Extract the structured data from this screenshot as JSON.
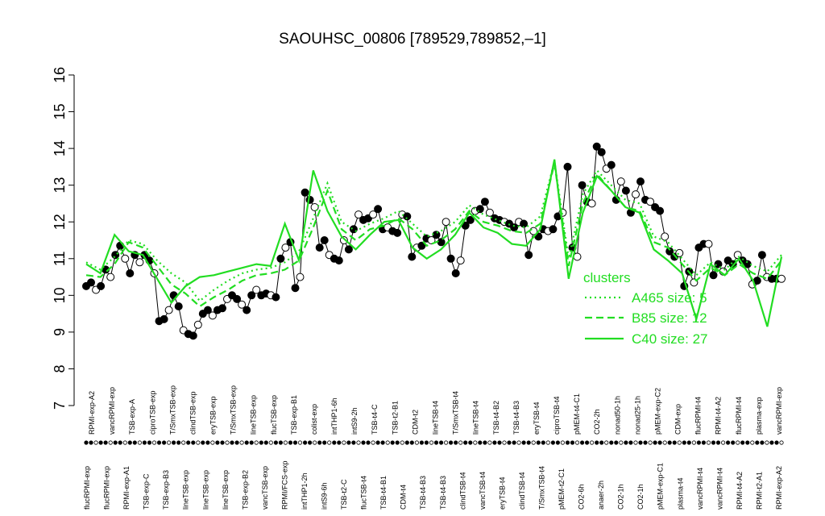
{
  "chart_data": {
    "type": "line",
    "title": "SAOUHSC_00806 [789529,789852,–1]",
    "xlabel": "",
    "ylabel": "",
    "ylim": [
      7,
      16
    ],
    "y_ticks": [
      7,
      8,
      9,
      10,
      11,
      12,
      13,
      14,
      15,
      16
    ],
    "grid": false,
    "legend_position": "right",
    "colors": {
      "data": "#000000",
      "clusters": "#22dd22"
    },
    "legend": {
      "title": "clusters",
      "entries": [
        {
          "label": "A465 size: 5",
          "style": "dotted"
        },
        {
          "label": "B85 size: 12",
          "style": "dashed"
        },
        {
          "label": "C40 size: 27",
          "style": "solid"
        }
      ]
    },
    "top_labels": [
      "RPMI-exp-A2",
      "vancRPMI-exp",
      "TSB-exp-A",
      "ciproTSB-exp",
      "T/SmxTSB-exp",
      "clindTSB-exp",
      "eryTSB-exp",
      "T/SmxTSB-exp",
      "lineTSB-exp",
      "flucTSB-exp",
      "TSB-exp-B1",
      "colist-exp",
      "intTHP1-6h",
      "intS9-2h",
      "TSB-t4-C",
      "TSB-t2-B1",
      "CDM-t2",
      "lineTSB-t4",
      "T/SmxTSB-t4",
      "lineTSB-t4",
      "TSB-t4-B2",
      "TSB-t4-B3",
      "eryTSB-t4",
      "ciproTSB-t4",
      "pMEM-t4-C1",
      "CO2-2h",
      "nonad50-1h",
      "nonad25-1h",
      "pMEM-exp-C2",
      "CDM-exp",
      "flucRPMI-t4",
      "RPMI-t4-A2",
      "flucRPMI-t4",
      "plasma-exp",
      "vancRPMI-exp"
    ],
    "bottom_labels": [
      "flucRPMI-exp",
      "flucRPMI-exp",
      "RPMI-exp-A1",
      "TSB-exp-C",
      "TSB-exp-B3",
      "lineTSB-exp",
      "lineTSB-exp",
      "lineTSB-exp",
      "TSB-exp-B2",
      "vancTSB-exp",
      "RPMI/FCS-exp",
      "intTHP1-2h",
      "intS9-6h",
      "TSB-t2-C",
      "flucTSB-t4",
      "TSB-t4-B1",
      "CDM-t4",
      "TSB-t4-B3",
      "TSB-t4-B3",
      "clindTSB-t4",
      "vancTSB-t4",
      "eryTSB-t4",
      "clindTSB-t4",
      "T/SmxTSB-t4",
      "pMEM-t2-C1",
      "CO2-6h",
      "anaer-2h",
      "CO2-1h",
      "CO2-1h",
      "pMEM-exp-C1",
      "plasma-t4",
      "vancRPMI-t4",
      "vancRPMI-t4",
      "RPMI-t4-A2",
      "RPMI-t2-A1",
      "RPMI-exp-A2"
    ],
    "series": [
      {
        "values": [
          10.25,
          10.35,
          10.15,
          10.25,
          10.7,
          10.5,
          11.1,
          11.35,
          11.0,
          10.6,
          11.1,
          10.9,
          11.1,
          10.95,
          10.6,
          9.3,
          9.35,
          9.6,
          10.0,
          9.7,
          9.05,
          8.95,
          8.9,
          9.2,
          9.5,
          9.6,
          9.45,
          9.6,
          9.65,
          9.9,
          10.0,
          9.9,
          9.75,
          9.6,
          10.0,
          10.15,
          10.0,
          10.05,
          10.0,
          9.95,
          11.0,
          11.3,
          11.45,
          10.2,
          10.5,
          12.8,
          12.6,
          12.4,
          11.3,
          11.5,
          11.1,
          11.0,
          10.95,
          11.5,
          11.25,
          11.8,
          12.2,
          12.05,
          12.1,
          12.2,
          12.35,
          11.8,
          11.85,
          11.75,
          11.7,
          12.2,
          12.15,
          11.05,
          11.3,
          11.35,
          11.55,
          11.5,
          11.65,
          11.45,
          12.0,
          11.0,
          10.6,
          10.95,
          11.9,
          12.05,
          12.3,
          12.35,
          12.55,
          12.25,
          12.1,
          12.05,
          12.0,
          11.95,
          11.85,
          12.0,
          11.95,
          11.1,
          11.75,
          11.6,
          11.8,
          11.75,
          11.8,
          12.15,
          12.25,
          13.5,
          11.3,
          11.05,
          13.0,
          12.55,
          12.5,
          14.05,
          13.9,
          13.45,
          13.55,
          12.6,
          13.1,
          12.85,
          12.25,
          12.75,
          13.1,
          12.6,
          12.55,
          12.4,
          12.3,
          11.6,
          11.2,
          11.05,
          11.15,
          10.25,
          10.65,
          10.35,
          11.3,
          11.4,
          11.4,
          10.55,
          10.85,
          10.65,
          10.95,
          10.85,
          11.1,
          10.95,
          10.85,
          10.3,
          10.4,
          11.1,
          10.5,
          10.45,
          10.45,
          10.45
        ]
      },
      {
        "name": "A465 size: 5",
        "values": [
          10.9,
          10.7,
          11.05,
          11.5,
          11.4,
          10.95,
          10.6,
          10.35,
          9.85,
          10.15,
          10.4,
          10.6,
          10.7,
          10.75,
          10.9,
          11.2,
          12.1,
          13.05,
          12.0,
          11.75,
          11.95,
          12.1,
          12.3,
          11.95,
          11.6,
          11.75,
          12.0,
          12.45,
          12.2,
          12.05,
          11.9,
          11.85,
          12.15,
          13.65,
          11.0,
          12.75,
          13.4,
          13.0,
          12.6,
          12.5,
          11.6,
          11.45,
          11.0,
          10.55,
          10.9,
          10.7,
          11.05,
          10.8,
          10.65,
          11.1
        ]
      },
      {
        "name": "B85 size: 12",
        "values": [
          10.55,
          10.5,
          10.85,
          11.45,
          11.3,
          10.8,
          10.3,
          10.05,
          9.7,
          9.95,
          10.15,
          10.4,
          10.55,
          10.6,
          10.7,
          10.95,
          11.85,
          12.85,
          11.8,
          11.5,
          11.8,
          11.9,
          12.1,
          11.8,
          11.35,
          11.5,
          11.8,
          12.3,
          12.0,
          11.9,
          11.75,
          11.7,
          11.95,
          13.6,
          10.8,
          12.5,
          13.3,
          12.85,
          12.4,
          12.3,
          11.45,
          11.3,
          10.85,
          10.4,
          10.75,
          10.55,
          10.85,
          10.6,
          10.45,
          10.95
        ]
      },
      {
        "name": "C40 size: 27",
        "values": [
          10.85,
          10.6,
          11.65,
          11.2,
          11.1,
          10.45,
          9.8,
          10.25,
          10.5,
          10.55,
          10.65,
          10.75,
          10.85,
          10.8,
          11.95,
          10.95,
          13.4,
          12.3,
          11.6,
          11.25,
          11.65,
          12.0,
          12.05,
          11.3,
          11.0,
          11.25,
          11.65,
          12.25,
          11.85,
          11.7,
          11.4,
          11.35,
          11.8,
          13.7,
          10.45,
          12.25,
          13.25,
          12.85,
          12.4,
          12.25,
          11.25,
          10.95,
          10.6,
          9.35,
          10.85,
          10.55,
          11.0,
          10.4,
          9.15,
          11.05
        ]
      }
    ]
  }
}
